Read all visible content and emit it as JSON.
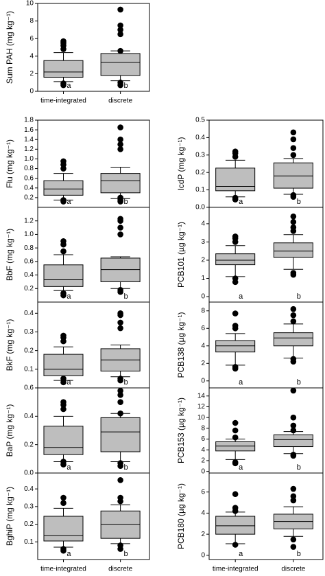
{
  "chart_data": [
    {
      "type": "box",
      "ylabel": "Sum PAH (mg kg⁻¹)",
      "categories": [
        "time-integrated",
        "discrete"
      ],
      "ylim": [
        0,
        10
      ],
      "yticks": [
        0,
        2,
        4,
        6,
        8,
        10
      ],
      "letters": [
        "a",
        "b"
      ],
      "boxes": [
        {
          "whisker_low": 1.1,
          "q1": 1.6,
          "median": 2.2,
          "q3": 3.5,
          "whisker_high": 4.4,
          "outliers": [
            0.7,
            0.9,
            4.8,
            5.2,
            5.5,
            5.7
          ]
        },
        {
          "whisker_low": 1.2,
          "q1": 1.8,
          "median": 3.3,
          "q3": 4.3,
          "whisker_high": 4.6,
          "outliers": [
            0.7,
            1.0,
            4.6,
            6.5,
            7.0,
            7.5,
            9.3
          ]
        }
      ]
    },
    {
      "type": "box",
      "ylabel": "Flu (mg kg⁻¹)",
      "ylim": [
        0,
        1.8
      ],
      "yticks": [
        0.2,
        0.4,
        0.6,
        0.8,
        {
          "value": 1,
          "label": "1.0"
        },
        1.2,
        1.4,
        1.6,
        1.8
      ],
      "letters": [
        "a",
        "b"
      ],
      "boxes": [
        {
          "whisker_low": 0.15,
          "q1": 0.25,
          "median": 0.38,
          "q3": 0.55,
          "whisker_high": 0.7,
          "outliers": [
            0.12,
            0.15,
            0.8,
            0.88,
            0.95
          ]
        },
        {
          "whisker_low": 0.18,
          "q1": 0.3,
          "median": 0.55,
          "q3": 0.7,
          "whisker_high": 0.83,
          "outliers": [
            0.12,
            0.15,
            0.2,
            1.2,
            1.3,
            1.4,
            1.65
          ]
        }
      ]
    },
    {
      "type": "box",
      "ylabel": "BbF (mg kg⁻¹)",
      "ylim": [
        0,
        1.4
      ],
      "yticks": [
        0.2,
        0.4,
        0.6,
        0.8,
        {
          "value": 1,
          "label": "1.0"
        },
        1.2
      ],
      "letters": [
        "a",
        "b"
      ],
      "boxes": [
        {
          "whisker_low": 0.17,
          "q1": 0.23,
          "median": 0.33,
          "q3": 0.55,
          "whisker_high": 0.7,
          "outliers": [
            0.1,
            0.13,
            0.75,
            0.85,
            0.9
          ]
        },
        {
          "whisker_low": 0.2,
          "q1": 0.3,
          "median": 0.48,
          "q3": 0.65,
          "whisker_high": 0.67,
          "outliers": [
            0.15,
            0.18,
            1.0,
            1.1,
            1.2,
            1.23
          ]
        }
      ]
    },
    {
      "type": "box",
      "ylabel": "BkF (mg kg⁻¹)",
      "ylim": [
        0,
        0.46
      ],
      "yticks": [
        0.1,
        0.2,
        0.3,
        0.4
      ],
      "letters": [
        "a",
        "b"
      ],
      "boxes": [
        {
          "whisker_low": 0.04,
          "q1": 0.065,
          "median": 0.1,
          "q3": 0.18,
          "whisker_high": 0.22,
          "outliers": [
            0.03,
            0.05,
            0.25,
            0.27,
            0.28
          ]
        },
        {
          "whisker_low": 0.06,
          "q1": 0.09,
          "median": 0.15,
          "q3": 0.21,
          "whisker_high": 0.23,
          "outliers": [
            0.04,
            0.05,
            0.32,
            0.35,
            0.39,
            0.4
          ]
        }
      ]
    },
    {
      "type": "box",
      "ylabel": "BaP (mg kg⁻¹)",
      "ylim": [
        0,
        0.6
      ],
      "yticks": [
        {
          "value": 0,
          "label": "0.0"
        },
        0.2,
        0.4,
        0.6
      ],
      "letters": [
        "a",
        "b"
      ],
      "boxes": [
        {
          "whisker_low": 0.08,
          "q1": 0.13,
          "median": 0.18,
          "q3": 0.33,
          "whisker_high": 0.4,
          "outliers": [
            0.06,
            0.08,
            0.45,
            0.48,
            0.5
          ]
        },
        {
          "whisker_low": 0.08,
          "q1": 0.15,
          "median": 0.29,
          "q3": 0.39,
          "whisker_high": 0.42,
          "outliers": [
            0.05,
            0.07,
            0.42,
            0.5,
            0.55,
            0.58
          ]
        }
      ]
    },
    {
      "type": "box",
      "ylabel": "BghiP (mg kg⁻¹)",
      "categories": [
        "time-integrated",
        "discrete"
      ],
      "ylim": [
        0,
        0.49
      ],
      "yticks": [
        0.1,
        0.2,
        0.3,
        0.4
      ],
      "letters": [
        "a",
        "b"
      ],
      "boxes": [
        {
          "whisker_low": 0.07,
          "q1": 0.105,
          "median": 0.135,
          "q3": 0.245,
          "whisker_high": 0.29,
          "outliers": [
            0.05,
            0.06,
            0.32,
            0.35
          ]
        },
        {
          "whisker_low": 0.09,
          "q1": 0.12,
          "median": 0.2,
          "q3": 0.275,
          "whisker_high": 0.31,
          "outliers": [
            0.06,
            0.08,
            0.33,
            0.35,
            0.45
          ]
        }
      ]
    },
    {
      "type": "box",
      "ylabel": "IcdP (mg kg⁻¹)",
      "ylim": [
        0,
        0.5
      ],
      "yticks": [
        {
          "value": 0,
          "label": "0.0"
        },
        0.1,
        0.2,
        0.3,
        0.4,
        0.5
      ],
      "letters": [
        "a",
        "b"
      ],
      "boxes": [
        {
          "whisker_low": 0.06,
          "q1": 0.095,
          "median": 0.12,
          "q3": 0.225,
          "whisker_high": 0.27,
          "outliers": [
            0.045,
            0.055,
            0.29,
            0.31,
            0.32
          ]
        },
        {
          "whisker_low": 0.075,
          "q1": 0.11,
          "median": 0.18,
          "q3": 0.255,
          "whisker_high": 0.28,
          "outliers": [
            0.06,
            0.07,
            0.3,
            0.34,
            0.39,
            0.43
          ]
        }
      ]
    },
    {
      "type": "box",
      "ylabel": "PCB101 (µg kg⁻¹)",
      "ylim": [
        -0.3,
        4.9
      ],
      "yticks": [
        0,
        1,
        2,
        3,
        4
      ],
      "letters": [
        "a",
        "b"
      ],
      "boxes": [
        {
          "whisker_low": 1.1,
          "q1": 1.75,
          "median": 2.0,
          "q3": 2.35,
          "whisker_high": 2.8,
          "outliers": [
            0.8,
            1.0,
            3.0,
            3.2,
            3.3
          ]
        },
        {
          "whisker_low": 1.5,
          "q1": 2.15,
          "median": 2.5,
          "q3": 2.95,
          "whisker_high": 3.4,
          "outliers": [
            1.2,
            1.3,
            3.6,
            3.8,
            4.1,
            4.4
          ]
        }
      ]
    },
    {
      "type": "box",
      "ylabel": "PCB138 (µg kg⁻¹)",
      "ylim": [
        -0.8,
        9
      ],
      "yticks": [
        0,
        2,
        4,
        6,
        8
      ],
      "letters": [
        "a",
        "b"
      ],
      "boxes": [
        {
          "whisker_low": 1.8,
          "q1": 3.3,
          "median": 4.0,
          "q3": 4.6,
          "whisker_high": 5.4,
          "outliers": [
            1.4,
            1.6,
            6.0,
            6.3,
            7.7
          ]
        },
        {
          "whisker_low": 2.6,
          "q1": 4.0,
          "median": 4.9,
          "q3": 5.5,
          "whisker_high": 6.5,
          "outliers": [
            2.2,
            2.5,
            6.8,
            7.5,
            8.2
          ]
        }
      ]
    },
    {
      "type": "box",
      "ylabel": "PCB153 (µg kg⁻¹)",
      "ylim": [
        -0.3,
        15.5
      ],
      "yticks": [
        0,
        2,
        4,
        6,
        8,
        10,
        12,
        14
      ],
      "letters": [
        "a",
        "b"
      ],
      "boxes": [
        {
          "whisker_low": 2.2,
          "q1": 3.8,
          "median": 4.7,
          "q3": 5.5,
          "whisker_high": 6.0,
          "outliers": [
            1.5,
            1.7,
            6.3,
            7.6,
            9.0
          ]
        },
        {
          "whisker_low": 3.3,
          "q1": 4.6,
          "median": 5.9,
          "q3": 6.8,
          "whisker_high": 7.4,
          "outliers": [
            2.9,
            3.1,
            7.6,
            8.5,
            10.0,
            15.0
          ]
        }
      ]
    },
    {
      "type": "box",
      "ylabel": "PCB180 (µg kg⁻¹)",
      "categories": [
        "time-integrated",
        "discrete"
      ],
      "ylim": [
        -0.4,
        7.8
      ],
      "yticks": [
        0,
        2,
        4,
        6
      ],
      "letters": [
        "a",
        "b"
      ],
      "boxes": [
        {
          "whisker_low": 1.1,
          "q1": 2.0,
          "median": 2.8,
          "q3": 3.7,
          "whisker_high": 4.1,
          "outliers": [
            1.0,
            4.2,
            4.5,
            5.8
          ]
        },
        {
          "whisker_low": 1.8,
          "q1": 2.5,
          "median": 3.2,
          "q3": 3.9,
          "whisker_high": 4.6,
          "outliers": [
            0.8,
            1.5,
            5.2,
            5.6,
            6.3
          ]
        }
      ]
    }
  ]
}
